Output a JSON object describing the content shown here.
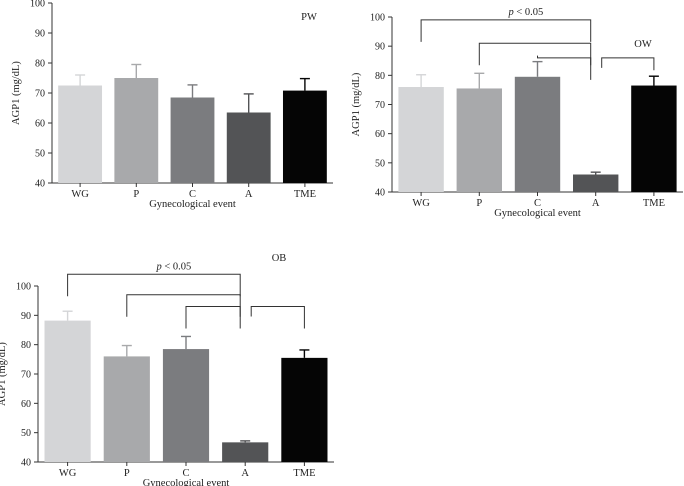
{
  "chart_data": [
    {
      "id": "pw",
      "type": "bar",
      "panel_label": "PW",
      "categories": [
        "WG",
        "P",
        "C",
        "A",
        "TME"
      ],
      "values": [
        72.5,
        75,
        68.5,
        63.5,
        70.8
      ],
      "errors": [
        3.5,
        4.5,
        4.2,
        6.2,
        4.0
      ],
      "colors": [
        "#d4d5d7",
        "#a8a9ab",
        "#7b7c7f",
        "#535456",
        "#050505"
      ],
      "ylabel": "AGP1 (mg/dL)",
      "xlabel": "Gynecological event",
      "ylim": [
        40,
        100
      ],
      "yticks": [
        40,
        50,
        60,
        70,
        80,
        90,
        100
      ],
      "significance": []
    },
    {
      "id": "ow",
      "type": "bar",
      "panel_label": "OW",
      "categories": [
        "WG",
        "P",
        "C",
        "A",
        "TME"
      ],
      "values": [
        76,
        75.5,
        79.5,
        46,
        76.5
      ],
      "errors": [
        4.2,
        5.2,
        5.2,
        0.8,
        3.2
      ],
      "colors": [
        "#d4d5d7",
        "#a8a9ab",
        "#7b7c7f",
        "#535456",
        "#050505"
      ],
      "ylabel": "AGP1 (mg/dL)",
      "xlabel": "Gynecological event",
      "ylim": [
        40,
        100
      ],
      "yticks": [
        40,
        50,
        60,
        70,
        80,
        90,
        100
      ],
      "significance": [
        {
          "from": 0,
          "to": 3,
          "level": 99,
          "label_p": "p",
          "label_rest": " < 0.05"
        },
        {
          "from": 1,
          "to": 3,
          "level": 91,
          "label_p": "",
          "label_rest": ""
        },
        {
          "from": 2,
          "to": 3,
          "level": 86,
          "label_p": "",
          "label_rest": ""
        },
        {
          "from": 3,
          "to": 4,
          "level": 86,
          "label_p": "",
          "label_rest": ""
        }
      ]
    },
    {
      "id": "ob",
      "type": "bar",
      "panel_label": "OB",
      "categories": [
        "WG",
        "P",
        "C",
        "A",
        "TME"
      ],
      "values": [
        88.2,
        76,
        78.5,
        46.7,
        75.5
      ],
      "errors": [
        3.2,
        3.7,
        4.3,
        0.5,
        2.7
      ],
      "colors": [
        "#d4d5d7",
        "#a8a9ab",
        "#7b7c7f",
        "#535456",
        "#050505"
      ],
      "ylabel": "AGP1 (mg/dL)",
      "xlabel": "Gynecological event",
      "ylim": [
        40,
        100
      ],
      "yticks": [
        40,
        50,
        60,
        70,
        80,
        90,
        100
      ],
      "significance": [
        {
          "from": 0,
          "to": 3,
          "level": 104,
          "label_p": "p",
          "label_rest": " < 0.05"
        },
        {
          "from": 1,
          "to": 3,
          "level": 97,
          "label_p": "",
          "label_rest": ""
        },
        {
          "from": 2,
          "to": 3,
          "level": 93,
          "label_p": "",
          "label_rest": ""
        },
        {
          "from": 3,
          "to": 4,
          "level": 93,
          "label_p": "",
          "label_rest": ""
        }
      ]
    }
  ]
}
